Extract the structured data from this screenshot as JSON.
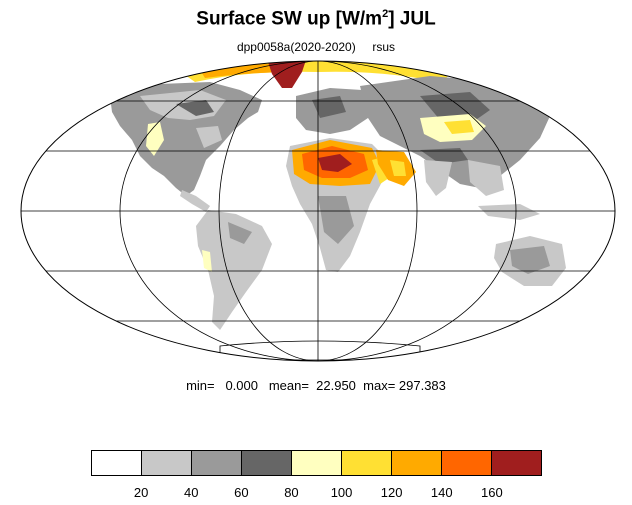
{
  "header": {
    "title": "Surface SW up [W/m",
    "title_sup": "2",
    "title_tail": "]  JUL",
    "experiment": "dpp0058a(2020-2020)",
    "variable": "rsus"
  },
  "stats": {
    "text": "min=   0.000   mean=  22.950  max= 297.383"
  },
  "colorbar": {
    "colors": [
      "#ffffff",
      "#c8c8c8",
      "#9a9a9a",
      "#666666",
      "#ffffc0",
      "#ffe033",
      "#ffaa00",
      "#ff6600",
      "#a01e1e"
    ],
    "tick_labels": [
      "20",
      "40",
      "60",
      "80",
      "100",
      "120",
      "140",
      "160"
    ]
  },
  "map": {
    "projection": "Mollweide",
    "ocean_color": "#ffffff",
    "coastline_color": "#000000",
    "gridlines": "on"
  }
}
